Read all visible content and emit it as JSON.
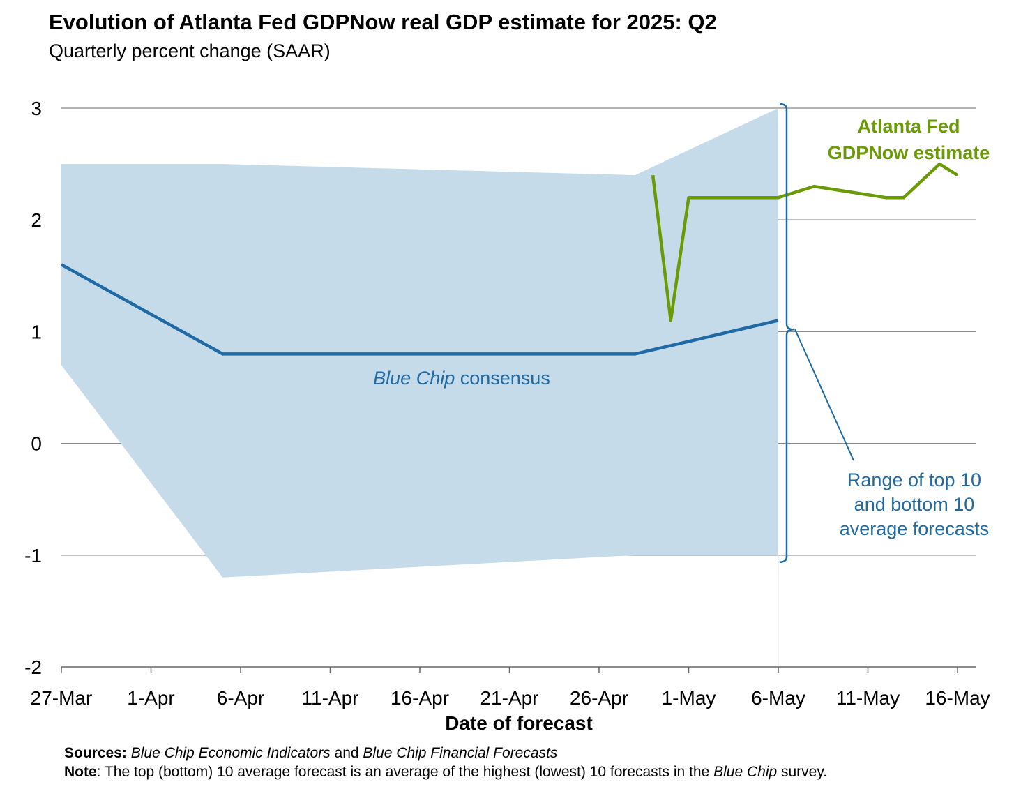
{
  "title": "Evolution of Atlanta Fed GDPNow real GDP estimate for 2025: Q2",
  "subtitle": "Quarterly percent change (SAAR)",
  "colors": {
    "gdpnow": "#6a9a06",
    "consensus": "#1f6aa5",
    "range_fill": "#c5dbe9",
    "gridline": "#888888",
    "annotation_blue": "#1f6aa5"
  },
  "chart_data": {
    "type": "line",
    "title": "Evolution of Atlanta Fed GDPNow real GDP estimate for 2025: Q2",
    "subtitle": "Quarterly percent change (SAAR)",
    "xlabel": "Date of forecast",
    "ylabel": "",
    "ylim": [
      -2,
      3
    ],
    "yticks": [
      "3",
      "2",
      "1",
      "0",
      "-1",
      "-2"
    ],
    "ytick_values": [
      3,
      2,
      1,
      0,
      -1,
      -2
    ],
    "xlim": [
      "2025-03-27",
      "2025-05-17"
    ],
    "xticks": [
      "27-Mar",
      "1-Apr",
      "6-Apr",
      "11-Apr",
      "16-Apr",
      "21-Apr",
      "26-Apr",
      "1-May",
      "6-May",
      "11-May",
      "16-May"
    ],
    "xtick_dates": [
      "2025-03-27",
      "2025-04-01",
      "2025-04-06",
      "2025-04-11",
      "2025-04-16",
      "2025-04-21",
      "2025-04-26",
      "2025-05-01",
      "2025-05-06",
      "2025-05-11",
      "2025-05-16"
    ],
    "grid": "horizontal",
    "series": [
      {
        "name": "Atlanta Fed GDPNow estimate",
        "x": [
          "2025-04-29",
          "2025-04-30",
          "2025-05-01",
          "2025-05-06",
          "2025-05-08",
          "2025-05-12",
          "2025-05-13",
          "2025-05-15",
          "2025-05-16"
        ],
        "y": [
          2.4,
          1.1,
          2.2,
          2.2,
          2.3,
          2.2,
          2.2,
          2.5,
          2.4
        ]
      },
      {
        "name": "Blue Chip consensus",
        "x": [
          "2025-03-27",
          "2025-04-05",
          "2025-04-28",
          "2025-05-06"
        ],
        "y": [
          1.6,
          0.8,
          0.8,
          1.1
        ]
      }
    ],
    "range": {
      "name": "Range of top 10 and bottom 10 average forecasts",
      "x": [
        "2025-03-27",
        "2025-04-05",
        "2025-04-28",
        "2025-05-06"
      ],
      "upper": [
        2.5,
        2.5,
        2.4,
        3.0
      ],
      "lower": [
        0.7,
        -1.2,
        -1.0,
        -1.0
      ]
    },
    "annotations": {
      "gdpnow_line1": "Atlanta Fed",
      "gdpnow_line2": "GDPNow estimate",
      "consensus_italic": "Blue Chip",
      "consensus_rest": " consensus",
      "range_line1": "Range of top 10",
      "range_line2": "and bottom 10",
      "range_line3": "average forecasts"
    }
  },
  "notes": {
    "sources_label": "Sources:",
    "sources_part1": "Blue Chip Economic Indicators",
    "sources_and": " and ",
    "sources_part2": "Blue Chip Financial Forecasts",
    "note_label": "Note",
    "note_text1": ": The top (bottom) 10 average forecast is an average of the highest (lowest) 10 forecasts in the ",
    "note_italic": "Blue Chip",
    "note_text2": " survey."
  }
}
